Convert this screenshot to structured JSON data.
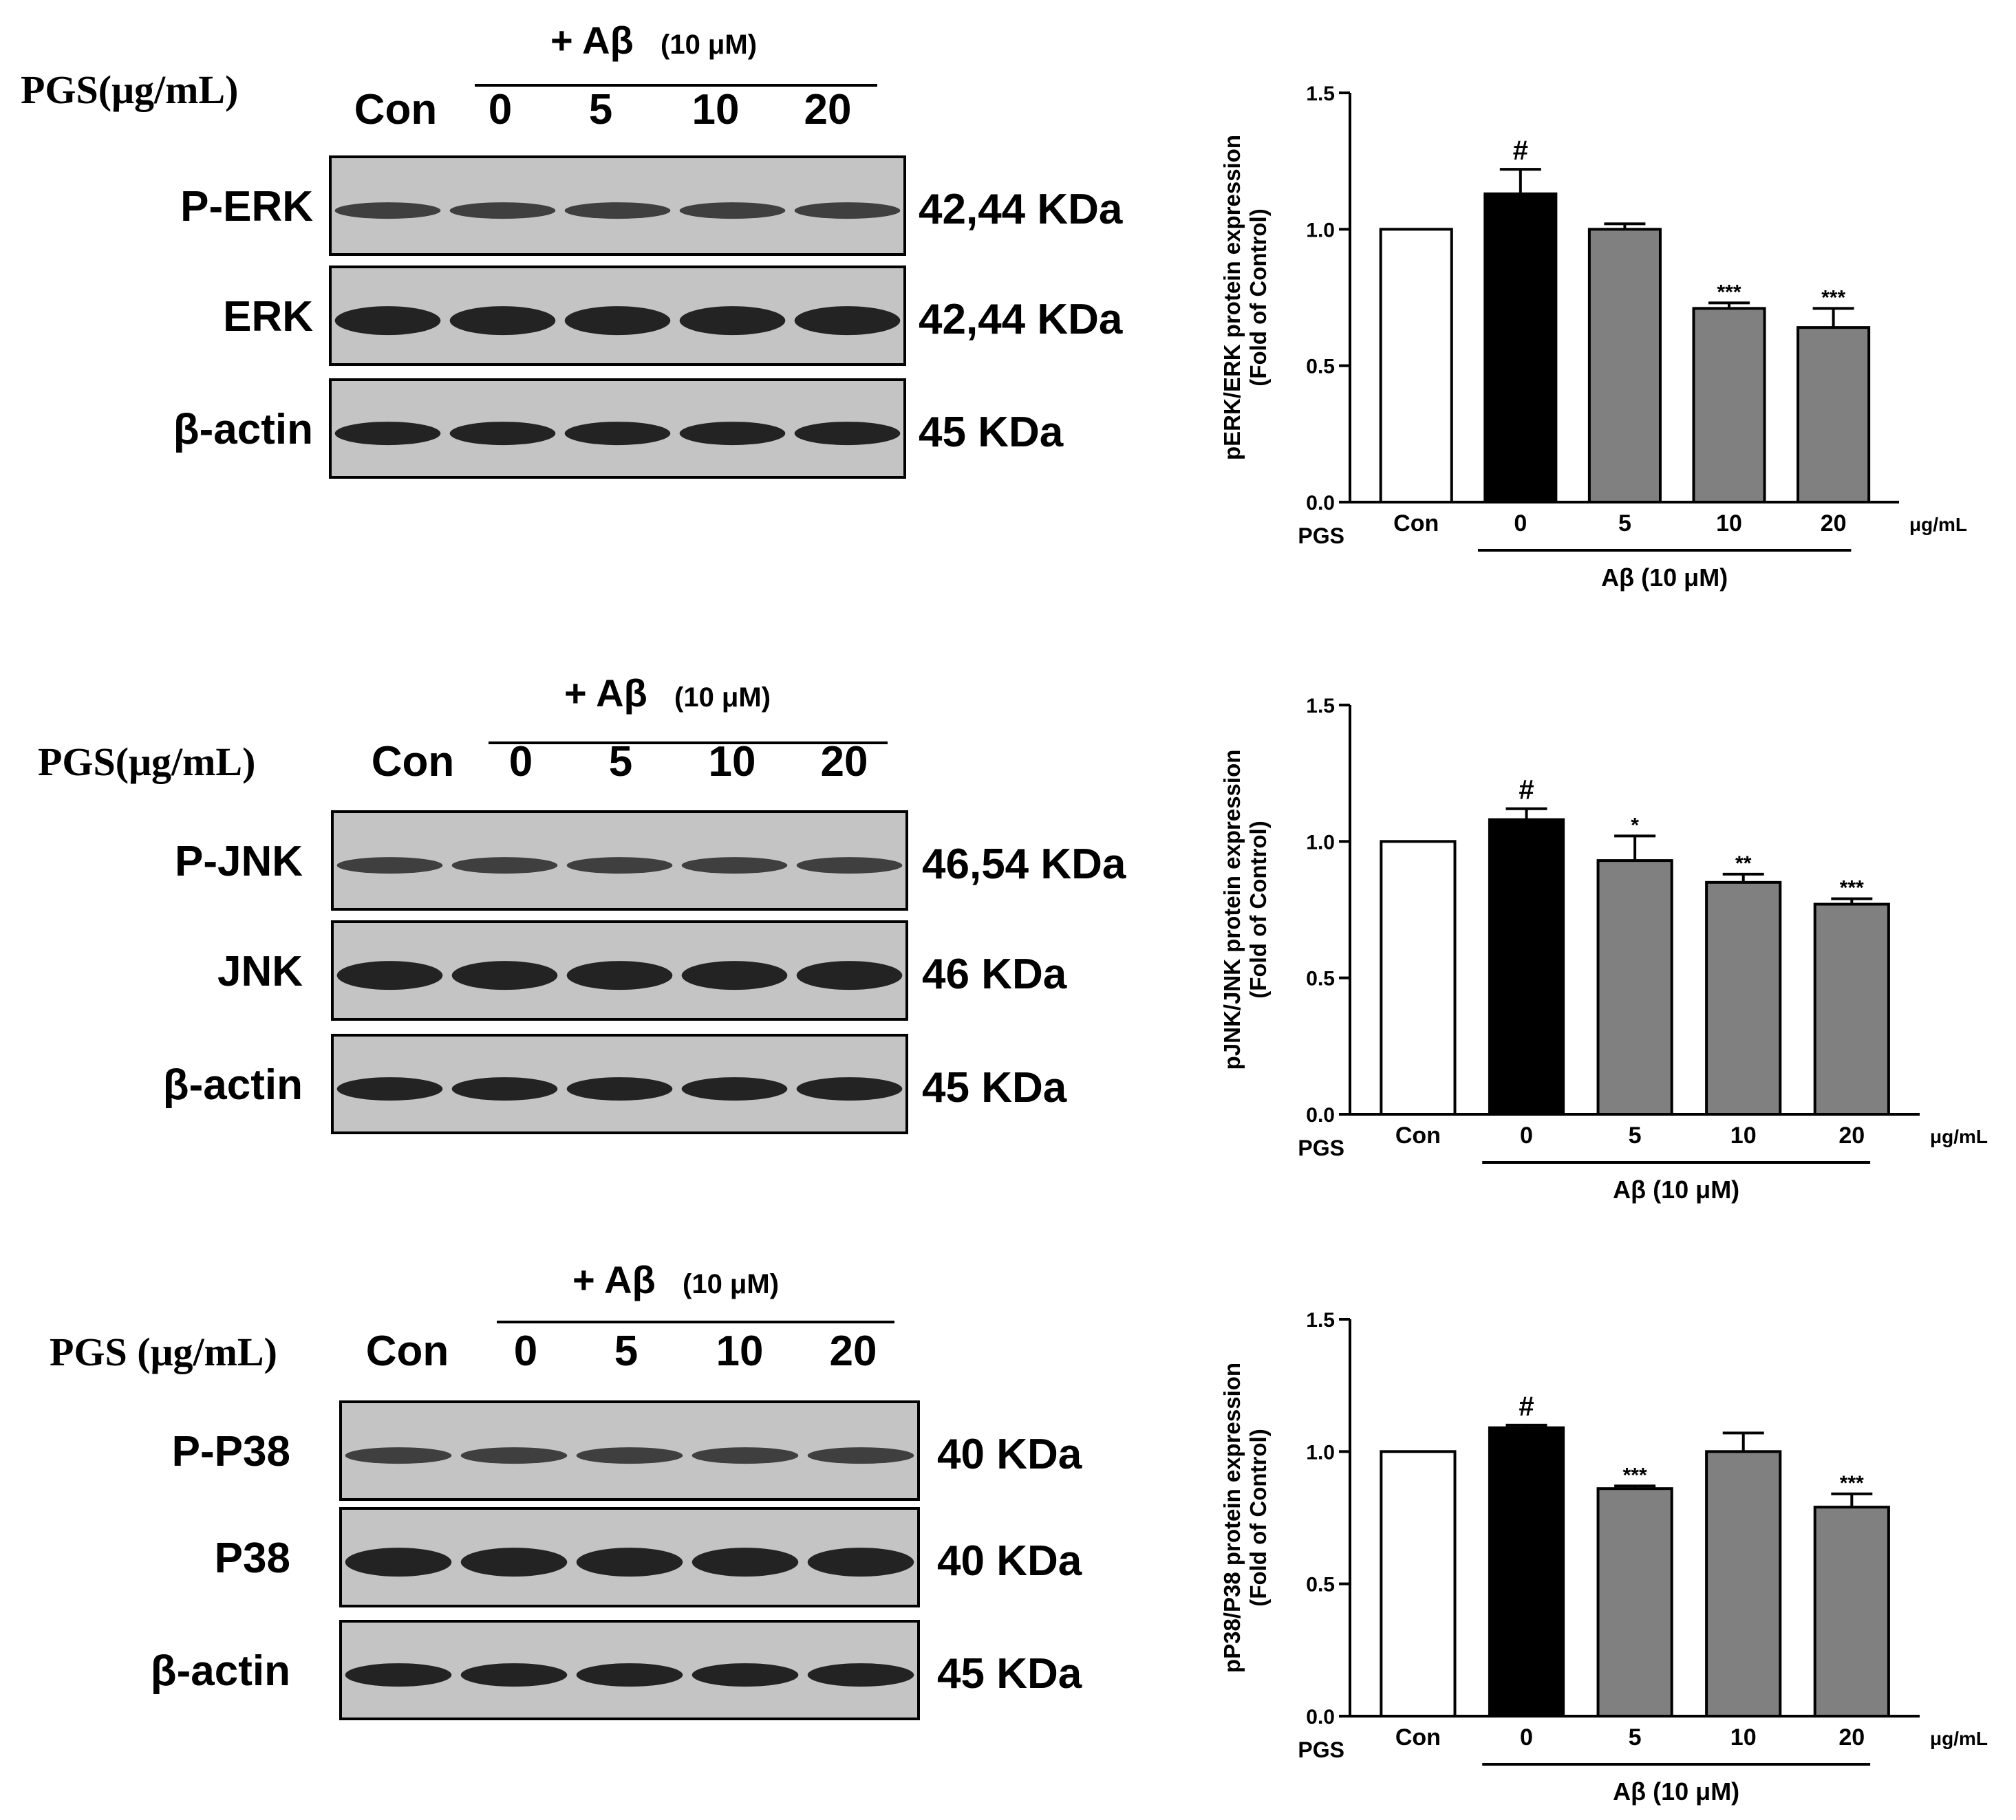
{
  "panels": [
    {
      "blot": {
        "treatment_label": "+ Aβ",
        "treatment_conc": "(10 μM)",
        "pgs_label": "PGS(μg/mL)",
        "lanes": [
          "Con",
          "0",
          "5",
          "10",
          "20"
        ],
        "rows": [
          {
            "protein": "P-ERK",
            "size": "42,44 KDa"
          },
          {
            "protein": "ERK",
            "size": "42,44 KDa"
          },
          {
            "protein": "β-actin",
            "size": "45 KDa"
          }
        ]
      },
      "chart": {
        "ylabel_line1": "pERK/ERK protein expression",
        "ylabel_line2": "(Fold of Control)",
        "x_prefix": "PGS",
        "x_unit": "μg/mL",
        "group_label": "Aβ (10 μM)",
        "y_ticks": [
          "0.0",
          "0.5",
          "1.0",
          "1.5"
        ]
      }
    },
    {
      "blot": {
        "treatment_label": "+ Aβ",
        "treatment_conc": "(10 μM)",
        "pgs_label": "PGS(μg/mL)",
        "lanes": [
          "Con",
          "0",
          "5",
          "10",
          "20"
        ],
        "rows": [
          {
            "protein": "P-JNK",
            "size": "46,54 KDa"
          },
          {
            "protein": "JNK",
            "size": "46 KDa"
          },
          {
            "protein": "β-actin",
            "size": "45 KDa"
          }
        ]
      },
      "chart": {
        "ylabel_line1": "pJNK/JNK protein expression",
        "ylabel_line2": "(Fold of Control)",
        "x_prefix": "PGS",
        "x_unit": "μg/mL",
        "group_label": "Aβ (10 μM)",
        "y_ticks": [
          "0.0",
          "0.5",
          "1.0",
          "1.5"
        ]
      }
    },
    {
      "blot": {
        "treatment_label": "+ Aβ",
        "treatment_conc": "(10 μM)",
        "pgs_label": "PGS (μg/mL)",
        "lanes": [
          "Con",
          "0",
          "5",
          "10",
          "20"
        ],
        "rows": [
          {
            "protein": "P-P38",
            "size": "40 KDa"
          },
          {
            "protein": "P38",
            "size": "40 KDa"
          },
          {
            "protein": "β-actin",
            "size": "45 KDa"
          }
        ]
      },
      "chart": {
        "ylabel_line1": "pP38/P38 protein expression",
        "ylabel_line2": "(Fold of Control)",
        "x_prefix": "PGS",
        "x_unit": "μg/mL",
        "group_label": "Aβ (10 μM)",
        "y_ticks": [
          "0.0",
          "0.5",
          "1.0",
          "1.5"
        ]
      }
    }
  ],
  "colors": {
    "control_bar": "#ffffff",
    "abeta_bar": "#000000",
    "pgs_bar": "#808080",
    "blot_background": "#c4c4c4",
    "band": "#1a1a1a"
  },
  "chart_data": [
    {
      "type": "bar",
      "categories": [
        "Con",
        "0",
        "5",
        "10",
        "20"
      ],
      "values": [
        1.0,
        1.13,
        1.0,
        0.71,
        0.64
      ],
      "errors": [
        0.0,
        0.09,
        0.02,
        0.02,
        0.07
      ],
      "annotations": [
        "",
        "#",
        "",
        "***",
        "***"
      ],
      "bar_colors": [
        "#ffffff",
        "#000000",
        "#808080",
        "#808080",
        "#808080"
      ],
      "ylim": [
        0,
        1.5
      ],
      "grid": false,
      "legend": "none"
    },
    {
      "type": "bar",
      "categories": [
        "Con",
        "0",
        "5",
        "10",
        "20"
      ],
      "values": [
        1.0,
        1.08,
        0.93,
        0.85,
        0.77
      ],
      "errors": [
        0.0,
        0.04,
        0.09,
        0.03,
        0.02
      ],
      "annotations": [
        "",
        "#",
        "*",
        "**",
        "***"
      ],
      "bar_colors": [
        "#ffffff",
        "#000000",
        "#808080",
        "#808080",
        "#808080"
      ],
      "ylim": [
        0,
        1.5
      ],
      "grid": false,
      "legend": "none"
    },
    {
      "type": "bar",
      "categories": [
        "Con",
        "0",
        "5",
        "10",
        "20"
      ],
      "values": [
        1.0,
        1.09,
        0.86,
        1.0,
        0.79
      ],
      "errors": [
        0.0,
        0.01,
        0.01,
        0.07,
        0.05
      ],
      "annotations": [
        "",
        "#",
        "***",
        "",
        "***"
      ],
      "bar_colors": [
        "#ffffff",
        "#000000",
        "#808080",
        "#808080",
        "#808080"
      ],
      "ylim": [
        0,
        1.5
      ],
      "grid": false,
      "legend": "none"
    }
  ]
}
